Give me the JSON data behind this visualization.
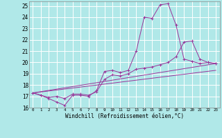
{
  "xlabel": "Windchill (Refroidissement éolien,°C)",
  "bg_color": "#b0e8e8",
  "grid_color": "#ffffff",
  "line_color": "#993399",
  "xlim": [
    -0.5,
    23.5
  ],
  "ylim": [
    16,
    25.4
  ],
  "xticks": [
    0,
    1,
    2,
    3,
    4,
    5,
    6,
    7,
    8,
    9,
    10,
    11,
    12,
    13,
    14,
    15,
    16,
    17,
    18,
    19,
    20,
    21,
    22,
    23
  ],
  "yticks": [
    16,
    17,
    18,
    19,
    20,
    21,
    22,
    23,
    24,
    25
  ],
  "line1_x": [
    0,
    1,
    2,
    3,
    4,
    5,
    6,
    7,
    8,
    9,
    10,
    11,
    12,
    13,
    14,
    15,
    16,
    17,
    18,
    19,
    20,
    21,
    22,
    23
  ],
  "line1_y": [
    17.3,
    17.1,
    16.8,
    16.5,
    16.2,
    17.1,
    17.1,
    17.0,
    17.5,
    19.2,
    19.3,
    19.1,
    19.3,
    21.0,
    24.0,
    23.9,
    25.1,
    25.2,
    23.3,
    20.3,
    20.1,
    19.9,
    20.0,
    19.9
  ],
  "line2_x": [
    0,
    1,
    2,
    3,
    4,
    5,
    6,
    7,
    8,
    9,
    10,
    11,
    12,
    13,
    14,
    15,
    16,
    17,
    18,
    19,
    20,
    21,
    22,
    23
  ],
  "line2_y": [
    17.3,
    17.1,
    16.9,
    17.0,
    16.8,
    17.2,
    17.2,
    17.1,
    17.4,
    18.5,
    18.9,
    18.8,
    19.0,
    19.4,
    19.5,
    19.6,
    19.8,
    20.0,
    20.5,
    21.8,
    21.9,
    20.3,
    20.0,
    19.9
  ],
  "line3_x": [
    0,
    23
  ],
  "line3_y": [
    17.3,
    19.9
  ],
  "line4_x": [
    0,
    23
  ],
  "line4_y": [
    17.3,
    19.3
  ]
}
